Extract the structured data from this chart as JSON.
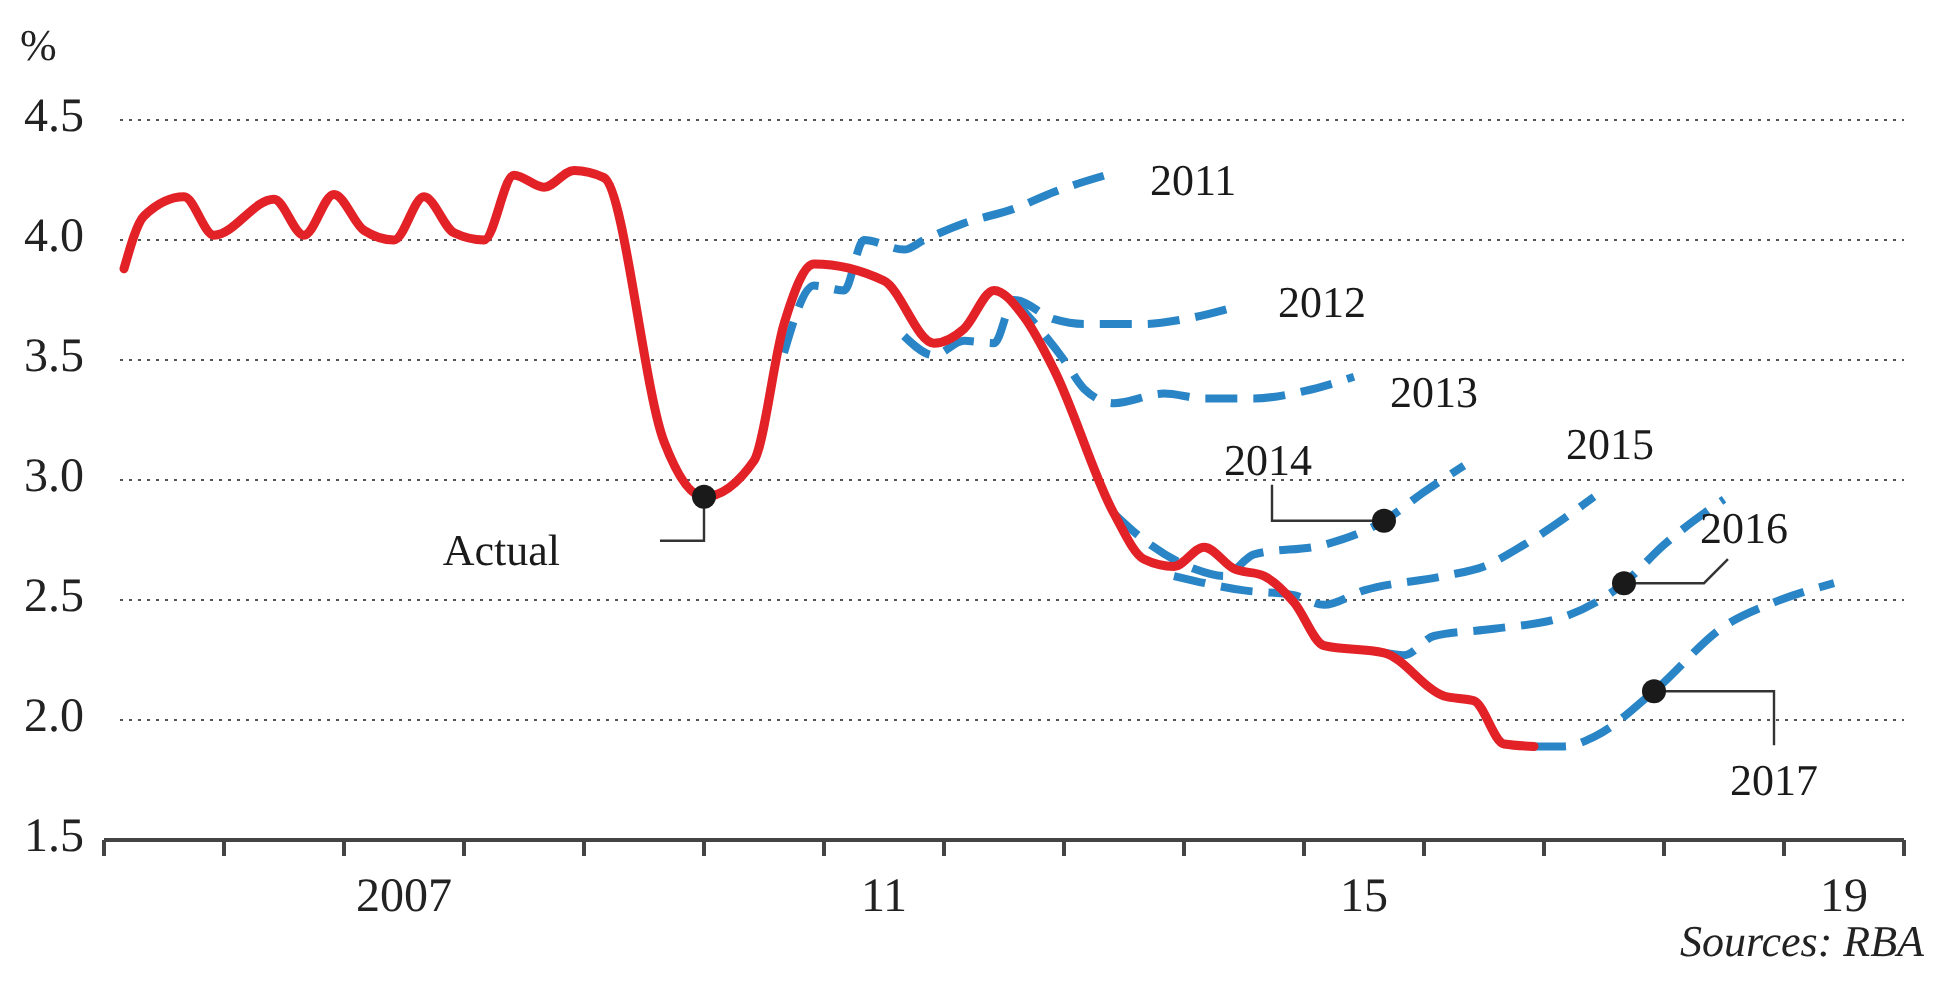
{
  "chart_data": {
    "type": "line",
    "ylabel": "%",
    "xlim": [
      "2005-01",
      "2020-01"
    ],
    "ylim": [
      1.5,
      4.5
    ],
    "yticks": [
      {
        "value": 1.5,
        "label": "1.5"
      },
      {
        "value": 2,
        "label": "2.0"
      },
      {
        "value": 2.5,
        "label": "2.5"
      },
      {
        "value": 3,
        "label": "3.0"
      },
      {
        "value": 3.5,
        "label": "3.5"
      },
      {
        "value": 4,
        "label": "4.0"
      },
      {
        "value": 4.5,
        "label": "4.5"
      }
    ],
    "xticks": [
      {
        "value": "2005",
        "label": null
      },
      {
        "value": "2006",
        "label": null
      },
      {
        "value": "2007",
        "label": null
      },
      {
        "value": "2007-07",
        "label": "2007"
      },
      {
        "value": "2008",
        "label": null
      },
      {
        "value": "2009",
        "label": null
      },
      {
        "value": "2010",
        "label": null
      },
      {
        "value": "2011",
        "label": null
      },
      {
        "value": "2011-07",
        "label": "11"
      },
      {
        "value": "2012",
        "label": null
      },
      {
        "value": "2013",
        "label": null
      },
      {
        "value": "2014",
        "label": null
      },
      {
        "value": "2015",
        "label": null
      },
      {
        "value": "2015-07",
        "label": "15"
      },
      {
        "value": "2016",
        "label": null
      },
      {
        "value": "2017",
        "label": null
      },
      {
        "value": "2018",
        "label": null
      },
      {
        "value": "2019",
        "label": null
      },
      {
        "value": "2019-07",
        "label": "19"
      },
      {
        "value": "2020",
        "label": null
      }
    ],
    "grid": "y",
    "annotations": [
      "Sources: RBA"
    ],
    "series": [
      {
        "name": "2011",
        "color": "#2a85c6",
        "line_style": "dashed",
        "x": [
          "2010-09",
          "2010-12",
          "2011-03",
          "2011-05",
          "2011-09",
          "2011-11",
          "2012-03",
          "2012-08",
          "2012-12",
          "2013-06"
        ],
        "values": [
          3.53,
          3.81,
          3.79,
          4.0,
          3.96,
          4.0,
          4.07,
          4.13,
          4.2,
          4.28
        ]
      },
      {
        "name": "2012",
        "color": "#2a85c6",
        "line_style": "dashed",
        "x": [
          "2011-09",
          "2011-12",
          "2012-03",
          "2012-06",
          "2012-08",
          "2012-12",
          "2013-03",
          "2013-09",
          "2014-01",
          "2014-06"
        ],
        "values": [
          3.6,
          3.52,
          3.58,
          3.57,
          3.75,
          3.67,
          3.65,
          3.65,
          3.67,
          3.72
        ]
      },
      {
        "name": "2013",
        "color": "#2a85c6",
        "line_style": "dashed",
        "x": [
          "2012-08",
          "2013-01",
          "2013-03",
          "2013-06",
          "2013-11",
          "2014-03",
          "2014-08",
          "2015-01",
          "2015-06"
        ],
        "values": [
          3.75,
          3.5,
          3.38,
          3.32,
          3.36,
          3.34,
          3.34,
          3.37,
          3.43
        ]
      },
      {
        "name": "2014",
        "color": "#2a85c6",
        "line_style": "dashed",
        "x": [
          "2013-06",
          "2013-09",
          "2014-02",
          "2014-05",
          "2014-08",
          "2015-03",
          "2015-09",
          "2016-01",
          "2016-05"
        ],
        "values": [
          2.86,
          2.75,
          2.63,
          2.6,
          2.69,
          2.73,
          2.83,
          2.95,
          3.06
        ]
      },
      {
        "name": "2015",
        "color": "#2a85c6",
        "line_style": "dashed",
        "x": [
          "2013-12",
          "2014-07",
          "2014-12",
          "2015-03",
          "2015-07",
          "2016-03",
          "2016-07",
          "2016-11",
          "2017-06"
        ],
        "values": [
          2.6,
          2.54,
          2.52,
          2.48,
          2.54,
          2.6,
          2.64,
          2.73,
          2.93
        ]
      },
      {
        "name": "2016",
        "color": "#2a85c6",
        "line_style": "dashed",
        "x": [
          "2015-09",
          "2015-11",
          "2016-02",
          "2016-08",
          "2017-03",
          "2017-09",
          "2018-01",
          "2018-07"
        ],
        "values": [
          2.28,
          2.27,
          2.35,
          2.38,
          2.43,
          2.57,
          2.73,
          2.92
        ]
      },
      {
        "name": "2017",
        "color": "#2a85c6",
        "line_style": "dashed",
        "x": [
          "2016-12",
          "2017-03",
          "2017-06",
          "2017-12",
          "2018-07",
          "2018-12",
          "2019-06"
        ],
        "values": [
          1.89,
          1.89,
          1.93,
          2.12,
          2.39,
          2.49,
          2.57
        ]
      },
      {
        "name": "Actual",
        "color": "#e32228",
        "line_style": "solid",
        "x": [
          "2005-03",
          "2005-05",
          "2005-09",
          "2005-12",
          "2006-06",
          "2006-09",
          "2006-12",
          "2007-03",
          "2007-06",
          "2007-09",
          "2007-12",
          "2008-03",
          "2008-06",
          "2008-09",
          "2008-12",
          "2009-03",
          "2009-09",
          "2010-01",
          "2010-06",
          "2010-09",
          "2010-12",
          "2011-07",
          "2011-12",
          "2012-03",
          "2012-06",
          "2012-09",
          "2012-12",
          "2013-06",
          "2013-09",
          "2013-12",
          "2014-03",
          "2014-06",
          "2014-09",
          "2014-12",
          "2015-03",
          "2015-09",
          "2016-03",
          "2016-06",
          "2016-09",
          "2016-12"
        ],
        "values": [
          3.88,
          4.1,
          4.18,
          4.02,
          4.17,
          4.02,
          4.19,
          4.04,
          4.0,
          4.18,
          4.03,
          4.0,
          4.27,
          4.22,
          4.29,
          4.26,
          3.16,
          2.93,
          3.08,
          3.65,
          3.9,
          3.83,
          3.57,
          3.63,
          3.79,
          3.68,
          3.46,
          2.86,
          2.67,
          2.64,
          2.72,
          2.63,
          2.6,
          2.49,
          2.31,
          2.28,
          2.1,
          2.08,
          1.9,
          1.89
        ]
      }
    ]
  }
}
